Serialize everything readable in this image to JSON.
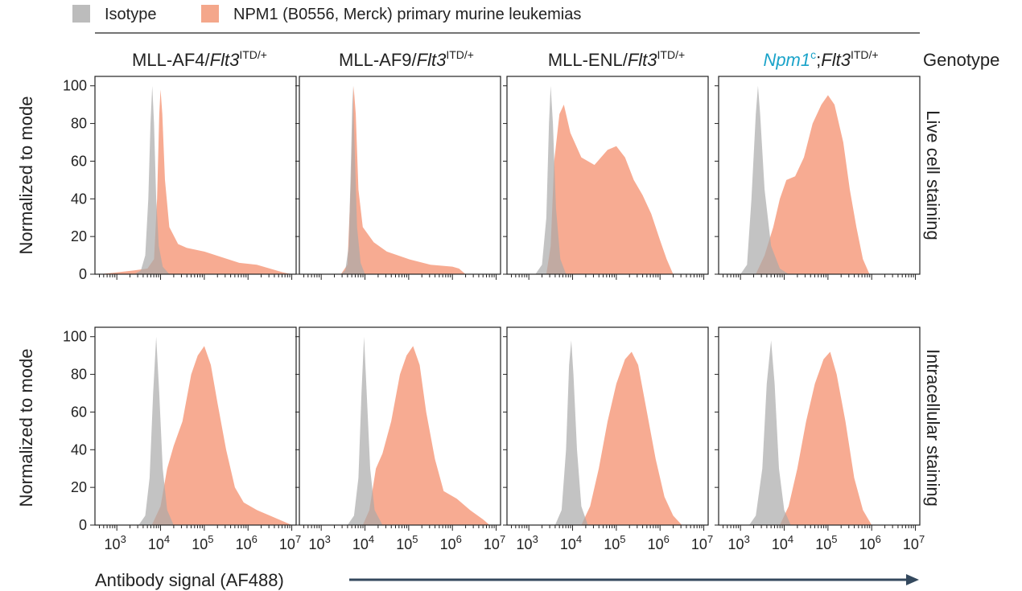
{
  "legend": [
    {
      "label": "Isotype",
      "color": "#bcbcbc"
    },
    {
      "label": "NPM1 (B0556, Merck) primary murine leukemias",
      "color": "#f4a78b"
    }
  ],
  "genotype_label": "Genotype",
  "x_axis_label": "Antibody signal (AF488)",
  "colors": {
    "isotype": "#a9a9a9",
    "npm1": "#f48f6e",
    "arrow": "#34495e",
    "npm1c_text": "#1aa3c9"
  },
  "columns": [
    {
      "prefix": "MLL-AF4/",
      "italic": "Flt3",
      "sup": "ITD/+"
    },
    {
      "prefix": "MLL-AF9/",
      "italic": "Flt3",
      "sup": "ITD/+"
    },
    {
      "prefix": "MLL-ENL/",
      "italic": "Flt3",
      "sup": "ITD/+"
    },
    {
      "npm_italic": "Npm1",
      "npm_sup": "c",
      "sep": ";",
      "italic": "Flt3",
      "sup": "ITD/+"
    }
  ],
  "rows": [
    {
      "label": "Live cell staining",
      "ylabel": "Normalized to mode"
    },
    {
      "label": "Intracellular staining",
      "ylabel": "Normalized to mode"
    }
  ],
  "chart_data": {
    "type": "area",
    "title": "",
    "xlabel": "Antibody signal (AF488)",
    "ylabel": "Normalized to mode",
    "x_scale": "log10",
    "xlim_log10": [
      2.5,
      7.1
    ],
    "ylim": [
      0,
      105
    ],
    "y_ticks": [
      "0",
      "20",
      "40",
      "60",
      "80",
      "100"
    ],
    "x_ticks": [
      {
        "base": "10",
        "exp": "3"
      },
      {
        "base": "10",
        "exp": "4"
      },
      {
        "base": "10",
        "exp": "5"
      },
      {
        "base": "10",
        "exp": "6"
      },
      {
        "base": "10",
        "exp": "7"
      }
    ],
    "panels": [
      {
        "row": 0,
        "col": 0,
        "isotype": [
          [
            3.4,
            0
          ],
          [
            3.55,
            2
          ],
          [
            3.65,
            10
          ],
          [
            3.72,
            40
          ],
          [
            3.77,
            80
          ],
          [
            3.81,
            100
          ],
          [
            3.85,
            80
          ],
          [
            3.9,
            40
          ],
          [
            3.96,
            15
          ],
          [
            4.05,
            4
          ],
          [
            4.2,
            0
          ]
        ],
        "npm1": [
          [
            2.6,
            0
          ],
          [
            3.0,
            1
          ],
          [
            3.4,
            2
          ],
          [
            3.7,
            3
          ],
          [
            3.85,
            8
          ],
          [
            3.92,
            40
          ],
          [
            3.97,
            85
          ],
          [
            4.0,
            98
          ],
          [
            4.04,
            85
          ],
          [
            4.1,
            50
          ],
          [
            4.2,
            25
          ],
          [
            4.4,
            16
          ],
          [
            4.6,
            14
          ],
          [
            5.0,
            12
          ],
          [
            5.4,
            9
          ],
          [
            5.8,
            6
          ],
          [
            6.2,
            5
          ],
          [
            6.5,
            3
          ],
          [
            6.8,
            1
          ],
          [
            7.0,
            0
          ]
        ]
      },
      {
        "row": 0,
        "col": 1,
        "isotype": [
          [
            3.45,
            0
          ],
          [
            3.55,
            2
          ],
          [
            3.63,
            15
          ],
          [
            3.68,
            60
          ],
          [
            3.72,
            100
          ],
          [
            3.76,
            70
          ],
          [
            3.82,
            25
          ],
          [
            3.9,
            6
          ],
          [
            4.0,
            0
          ]
        ],
        "npm1": [
          [
            3.45,
            0
          ],
          [
            3.6,
            5
          ],
          [
            3.68,
            50
          ],
          [
            3.74,
            100
          ],
          [
            3.79,
            85
          ],
          [
            3.85,
            45
          ],
          [
            3.95,
            25
          ],
          [
            4.2,
            17
          ],
          [
            4.5,
            12
          ],
          [
            5.0,
            8
          ],
          [
            5.5,
            5
          ],
          [
            6.0,
            4
          ],
          [
            6.15,
            3
          ],
          [
            6.3,
            0
          ]
        ]
      },
      {
        "row": 0,
        "col": 2,
        "isotype": [
          [
            3.15,
            0
          ],
          [
            3.3,
            5
          ],
          [
            3.4,
            30
          ],
          [
            3.46,
            80
          ],
          [
            3.5,
            100
          ],
          [
            3.55,
            80
          ],
          [
            3.62,
            35
          ],
          [
            3.72,
            8
          ],
          [
            3.85,
            0
          ]
        ],
        "npm1": [
          [
            3.4,
            0
          ],
          [
            3.5,
            15
          ],
          [
            3.58,
            60
          ],
          [
            3.7,
            85
          ],
          [
            3.8,
            90
          ],
          [
            3.95,
            75
          ],
          [
            4.2,
            62
          ],
          [
            4.5,
            58
          ],
          [
            4.8,
            66
          ],
          [
            5.0,
            68
          ],
          [
            5.2,
            62
          ],
          [
            5.4,
            50
          ],
          [
            5.6,
            42
          ],
          [
            5.8,
            32
          ],
          [
            6.0,
            18
          ],
          [
            6.15,
            8
          ],
          [
            6.3,
            0
          ]
        ]
      },
      {
        "row": 0,
        "col": 3,
        "isotype": [
          [
            3.0,
            0
          ],
          [
            3.15,
            5
          ],
          [
            3.25,
            40
          ],
          [
            3.35,
            85
          ],
          [
            3.4,
            100
          ],
          [
            3.45,
            85
          ],
          [
            3.55,
            45
          ],
          [
            3.7,
            15
          ],
          [
            3.9,
            3
          ],
          [
            4.1,
            0
          ]
        ],
        "npm1": [
          [
            3.35,
            0
          ],
          [
            3.55,
            10
          ],
          [
            3.75,
            25
          ],
          [
            3.9,
            40
          ],
          [
            4.05,
            50
          ],
          [
            4.25,
            52
          ],
          [
            4.45,
            62
          ],
          [
            4.65,
            80
          ],
          [
            4.85,
            90
          ],
          [
            5.0,
            95
          ],
          [
            5.15,
            90
          ],
          [
            5.35,
            70
          ],
          [
            5.5,
            45
          ],
          [
            5.65,
            25
          ],
          [
            5.8,
            8
          ],
          [
            5.95,
            0
          ]
        ]
      },
      {
        "row": 1,
        "col": 0,
        "isotype": [
          [
            3.5,
            0
          ],
          [
            3.65,
            5
          ],
          [
            3.75,
            25
          ],
          [
            3.83,
            70
          ],
          [
            3.9,
            100
          ],
          [
            3.97,
            70
          ],
          [
            4.05,
            30
          ],
          [
            4.15,
            8
          ],
          [
            4.3,
            0
          ]
        ],
        "npm1": [
          [
            3.8,
            0
          ],
          [
            4.0,
            10
          ],
          [
            4.15,
            30
          ],
          [
            4.3,
            42
          ],
          [
            4.5,
            55
          ],
          [
            4.7,
            80
          ],
          [
            4.85,
            90
          ],
          [
            5.0,
            95
          ],
          [
            5.15,
            85
          ],
          [
            5.3,
            65
          ],
          [
            5.5,
            40
          ],
          [
            5.7,
            20
          ],
          [
            5.9,
            12
          ],
          [
            6.2,
            8
          ],
          [
            6.5,
            5
          ],
          [
            6.8,
            2
          ],
          [
            7.0,
            0
          ]
        ]
      },
      {
        "row": 1,
        "col": 1,
        "isotype": [
          [
            3.6,
            0
          ],
          [
            3.75,
            5
          ],
          [
            3.85,
            25
          ],
          [
            3.92,
            70
          ],
          [
            3.98,
            100
          ],
          [
            4.04,
            70
          ],
          [
            4.12,
            30
          ],
          [
            4.22,
            8
          ],
          [
            4.4,
            0
          ]
        ],
        "npm1": [
          [
            3.95,
            0
          ],
          [
            4.1,
            8
          ],
          [
            4.25,
            30
          ],
          [
            4.4,
            38
          ],
          [
            4.6,
            55
          ],
          [
            4.8,
            80
          ],
          [
            4.95,
            90
          ],
          [
            5.1,
            95
          ],
          [
            5.25,
            85
          ],
          [
            5.4,
            60
          ],
          [
            5.6,
            35
          ],
          [
            5.8,
            18
          ],
          [
            6.1,
            14
          ],
          [
            6.4,
            8
          ],
          [
            6.7,
            3
          ],
          [
            6.85,
            0
          ]
        ]
      },
      {
        "row": 1,
        "col": 2,
        "isotype": [
          [
            3.6,
            0
          ],
          [
            3.75,
            8
          ],
          [
            3.85,
            40
          ],
          [
            3.92,
            85
          ],
          [
            3.97,
            98
          ],
          [
            4.02,
            80
          ],
          [
            4.1,
            40
          ],
          [
            4.2,
            10
          ],
          [
            4.35,
            0
          ]
        ],
        "npm1": [
          [
            4.2,
            0
          ],
          [
            4.4,
            10
          ],
          [
            4.6,
            30
          ],
          [
            4.8,
            55
          ],
          [
            5.0,
            75
          ],
          [
            5.2,
            88
          ],
          [
            5.35,
            92
          ],
          [
            5.5,
            85
          ],
          [
            5.7,
            60
          ],
          [
            5.9,
            35
          ],
          [
            6.1,
            15
          ],
          [
            6.3,
            5
          ],
          [
            6.5,
            0
          ]
        ]
      },
      {
        "row": 1,
        "col": 3,
        "isotype": [
          [
            3.2,
            0
          ],
          [
            3.35,
            5
          ],
          [
            3.5,
            30
          ],
          [
            3.6,
            75
          ],
          [
            3.7,
            98
          ],
          [
            3.78,
            75
          ],
          [
            3.88,
            30
          ],
          [
            4.0,
            8
          ],
          [
            4.15,
            0
          ]
        ],
        "npm1": [
          [
            3.9,
            0
          ],
          [
            4.1,
            10
          ],
          [
            4.3,
            30
          ],
          [
            4.5,
            55
          ],
          [
            4.7,
            75
          ],
          [
            4.9,
            88
          ],
          [
            5.05,
            92
          ],
          [
            5.2,
            80
          ],
          [
            5.4,
            55
          ],
          [
            5.6,
            25
          ],
          [
            5.8,
            8
          ],
          [
            6.0,
            0
          ]
        ]
      }
    ]
  }
}
